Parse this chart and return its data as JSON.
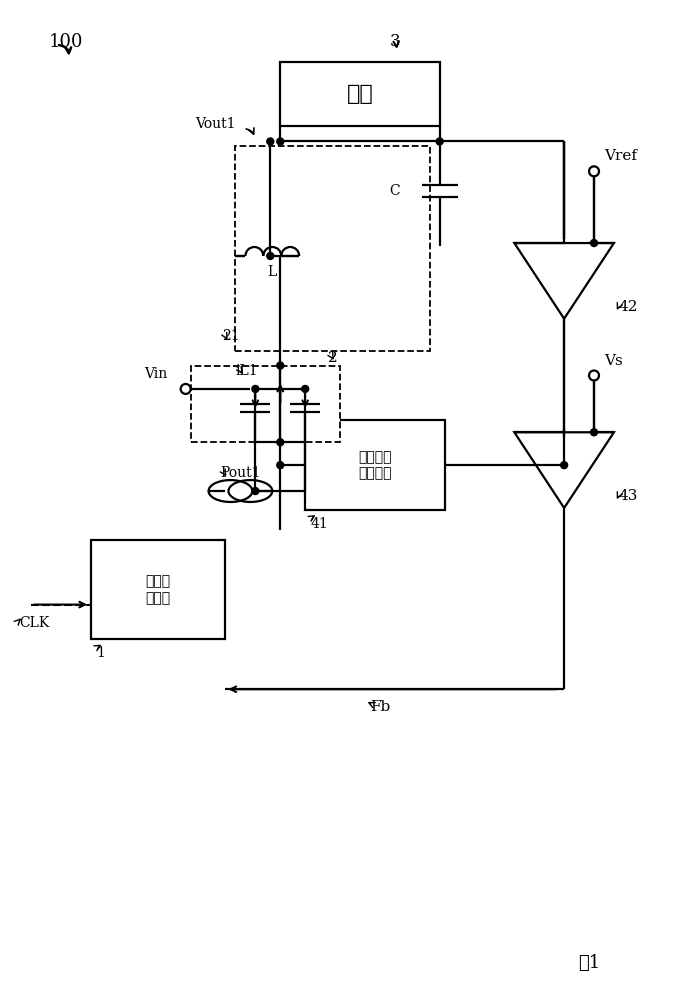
{
  "bg_color": "#ffffff",
  "title": "图1",
  "label_100": "100",
  "label_3": "3",
  "label_21": "21",
  "label_1": "1",
  "label_2": "2",
  "label_41": "41",
  "label_42": "42",
  "label_43": "43",
  "label_fuze": "负载",
  "label_kongzhi": "控制逻\n辑电路",
  "label_diangan": "电感电流\n检测电路",
  "label_vout1": "Vout1",
  "label_vin": "Vin",
  "label_pout1": "Pout1",
  "label_clk": "CLK",
  "label_fb": "Fb",
  "label_vref": "Vref",
  "label_vs": "Vs",
  "label_il1": "iL1",
  "label_L": "L",
  "label_C": "C"
}
